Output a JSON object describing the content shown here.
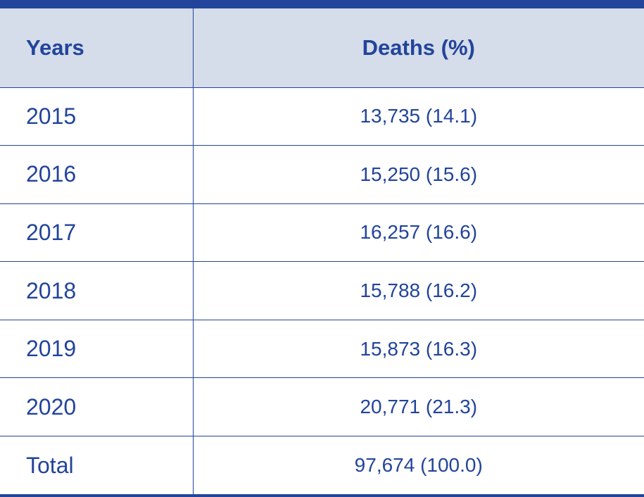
{
  "table": {
    "headers": {
      "years": "Years",
      "deaths": "Deaths (%)"
    },
    "rows": [
      {
        "year": "2015",
        "deaths": "13,735 (14.1)"
      },
      {
        "year": "2016",
        "deaths": "15,250 (15.6)"
      },
      {
        "year": "2017",
        "deaths": "16,257 (16.6)"
      },
      {
        "year": "2018",
        "deaths": "15,788 (16.2)"
      },
      {
        "year": "2019",
        "deaths": "15,873 (16.3)"
      },
      {
        "year": "2020",
        "deaths": "20,771 (21.3)"
      },
      {
        "year": "Total",
        "deaths": "97,674 (100.0)"
      }
    ]
  },
  "colors": {
    "accent": "#22449a",
    "header_background": "#d5dcea"
  }
}
